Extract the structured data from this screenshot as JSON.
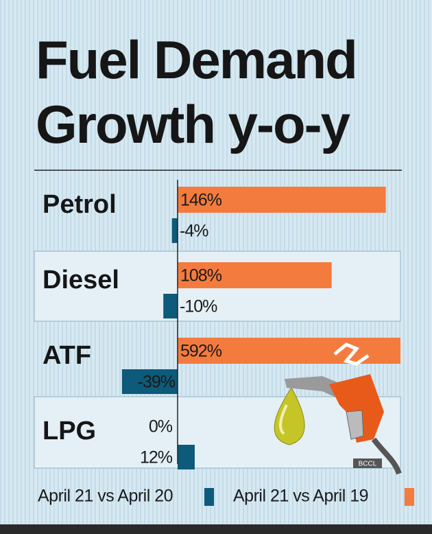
{
  "chart_data": {
    "type": "bar",
    "orientation": "horizontal",
    "title": "Fuel Demand Growth y-o-y",
    "categories": [
      "Petrol",
      "Diesel",
      "ATF",
      "LPG"
    ],
    "series": [
      {
        "name": "April 21 vs April 20",
        "color": "#0d5a7a",
        "values": [
          -4,
          -10,
          -39,
          12
        ],
        "value_labels": [
          "-4%",
          "-10%",
          "-39%",
          "12%"
        ]
      },
      {
        "name": "April 21 vs April 19",
        "color": "#f47b3e",
        "values": [
          146,
          108,
          592,
          0
        ],
        "value_labels": [
          "146%",
          "108%",
          "592%",
          "0%"
        ]
      }
    ],
    "credit": "BCCL"
  }
}
